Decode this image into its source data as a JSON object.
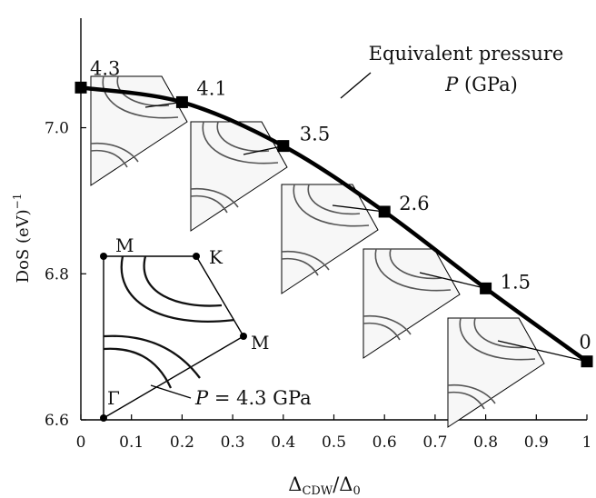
{
  "chart_data": {
    "type": "line",
    "xlabel_main": "Δ",
    "xlabel_sub": "CDW",
    "xlabel_den": "/Δ",
    "xlabel_den_sub": "0",
    "ylabel": "DoS (eV)",
    "ylabel_sup": "−1",
    "xlim": [
      0,
      1
    ],
    "ylim": [
      6.6,
      7.15
    ],
    "x_ticks": [
      0,
      0.1,
      0.2,
      0.3,
      0.4,
      0.5,
      0.6,
      0.7,
      0.8,
      0.9,
      1
    ],
    "x_tick_labels": [
      "0",
      "0.1",
      "0.2",
      "0.3",
      "0.4",
      "0.5",
      "0.6",
      "0.7",
      "0.8",
      "0.9",
      "1"
    ],
    "y_ticks": [
      6.6,
      6.8,
      7.0
    ],
    "y_tick_labels": [
      "6.6",
      "6.8",
      "7.0"
    ],
    "grid": false,
    "annotation_line1": "Equivalent pressure",
    "annotation_line2_italic": "P",
    "annotation_line2_rest": "(GPa)",
    "series": [
      {
        "x": [
          0,
          0.2,
          0.4,
          0.6,
          0.8,
          1.0
        ],
        "y": [
          7.055,
          7.035,
          6.975,
          6.885,
          6.78,
          6.68
        ],
        "point_labels": [
          "4.3",
          "4.1",
          "3.5",
          "2.6",
          "1.5",
          "0"
        ]
      }
    ],
    "inset_large": {
      "corner_labels": [
        "M",
        "K",
        "M",
        "Γ"
      ],
      "label_italic": "P",
      "label_rest": "= 4.3 GPa"
    },
    "colors": {
      "line": "#000000",
      "inset_fill": "#f7f7f7",
      "contour": "#555555"
    }
  }
}
